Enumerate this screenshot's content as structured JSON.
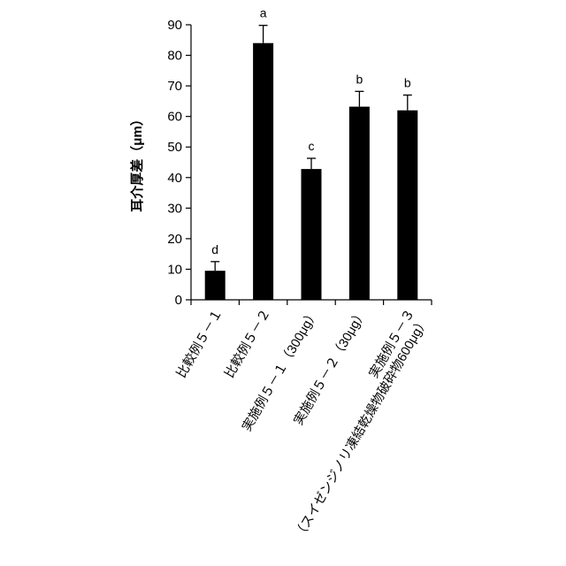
{
  "chart_data": {
    "type": "bar",
    "title": "",
    "xlabel": "",
    "ylabel": "耳介厚差（μm）",
    "ylim": [
      0,
      90
    ],
    "yticks": [
      0,
      10,
      20,
      30,
      40,
      50,
      60,
      70,
      80,
      90
    ],
    "grid": false,
    "bar_color": "#000000",
    "categories": [
      [
        "比較例５－１"
      ],
      [
        "比較例５－２"
      ],
      [
        "実施例５－１（300μg）"
      ],
      [
        "実施例５－２（30μg）"
      ],
      [
        "実施例５－３",
        "（スイゼンジノリ凍結乾燥物破砕物600μg）"
      ]
    ],
    "values": [
      9.5,
      84,
      42.8,
      63.2,
      62
    ],
    "errors": [
      3,
      5.8,
      3.5,
      5,
      5
    ],
    "significance": [
      "d",
      "a",
      "c",
      "b",
      "b"
    ]
  }
}
